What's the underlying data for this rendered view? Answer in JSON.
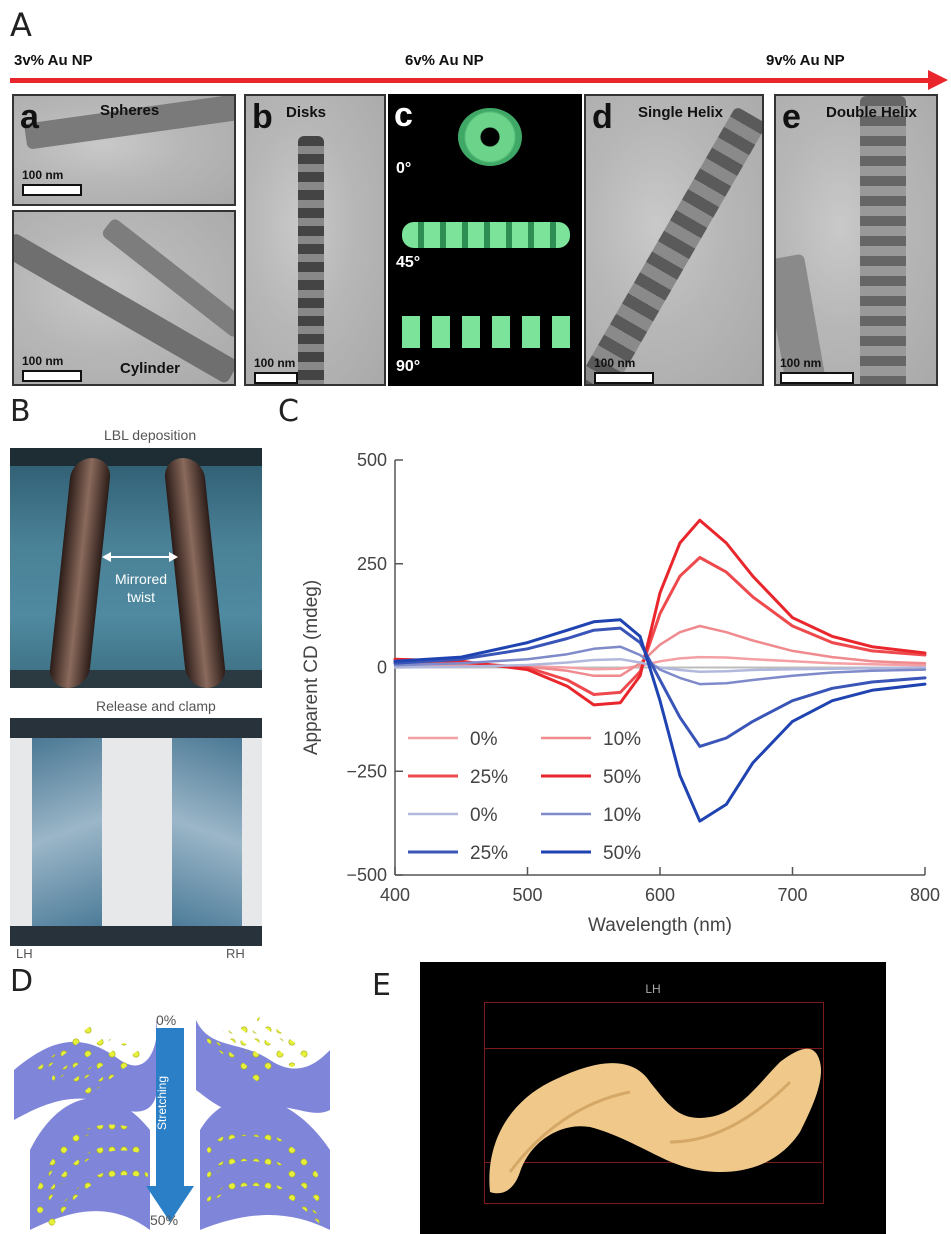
{
  "panelA": {
    "letter": "A",
    "arrow_labels": [
      "3v% Au NP",
      "6v% Au NP",
      "9v% Au NP"
    ],
    "subpanels": [
      {
        "letter": "a",
        "name": "Spheres",
        "scale": "100 nm"
      },
      {
        "letter": "",
        "name": "Cylinder",
        "scale": "100 nm"
      },
      {
        "letter": "b",
        "name": "Disks",
        "scale": "100 nm"
      },
      {
        "letter": "c",
        "name": "",
        "angles": [
          "0°",
          "45°",
          "90°"
        ]
      },
      {
        "letter": "d",
        "name": "Single Helix",
        "scale": "100 nm"
      },
      {
        "letter": "e",
        "name": "Double Helix",
        "scale": "100 nm"
      }
    ]
  },
  "panelB": {
    "letter": "B",
    "top_caption": "LBL deposition",
    "annotation": [
      "Mirrored",
      "twist"
    ],
    "bottom_caption": "Release and clamp",
    "left_label": "LH",
    "right_label": "RH"
  },
  "panelC": {
    "letter": "C"
  },
  "chart_data": {
    "type": "line",
    "xlabel": "Wavelength (nm)",
    "ylabel": "Apparent CD (mdeg)",
    "xlim": [
      400,
      800
    ],
    "ylim": [
      -500,
      500
    ],
    "xticks": [
      400,
      500,
      600,
      700,
      800
    ],
    "yticks": [
      500,
      250,
      0,
      -250,
      -500
    ],
    "ytick_labels": [
      "500",
      "250",
      "0",
      "−250",
      "−500"
    ],
    "legend_placement": "lower-left",
    "x": [
      400,
      450,
      500,
      530,
      550,
      570,
      585,
      600,
      615,
      630,
      650,
      670,
      700,
      730,
      760,
      800
    ],
    "series": [
      {
        "name": "0%",
        "group": "red",
        "color": "#f4a0a4",
        "width": 2.5,
        "values": [
          8,
          6,
          3,
          0,
          -4,
          -3,
          4,
          15,
          22,
          25,
          24,
          20,
          15,
          10,
          8,
          5
        ]
      },
      {
        "name": "10%",
        "group": "red",
        "color": "#ef8a8e",
        "width": 2.5,
        "values": [
          10,
          8,
          2,
          -8,
          -20,
          -20,
          10,
          55,
          85,
          100,
          85,
          65,
          40,
          25,
          15,
          10
        ]
      },
      {
        "name": "25%",
        "group": "red",
        "color": "#ee4a4e",
        "width": 3,
        "values": [
          15,
          12,
          0,
          -30,
          -65,
          -60,
          -10,
          130,
          220,
          265,
          230,
          170,
          100,
          60,
          40,
          30
        ]
      },
      {
        "name": "50%",
        "group": "red",
        "color": "#e8262b",
        "width": 3,
        "values": [
          20,
          15,
          -5,
          -45,
          -90,
          -85,
          -20,
          180,
          300,
          355,
          300,
          220,
          120,
          75,
          50,
          35
        ]
      },
      {
        "name": "0%",
        "group": "blue",
        "color": "#b1b8dc",
        "width": 2.5,
        "values": [
          0,
          2,
          6,
          12,
          18,
          20,
          12,
          0,
          -6,
          -10,
          -9,
          -6,
          -4,
          -3,
          -2,
          0
        ]
      },
      {
        "name": "10%",
        "group": "blue",
        "color": "#7e8ac9",
        "width": 2.5,
        "values": [
          5,
          10,
          20,
          32,
          45,
          50,
          30,
          -5,
          -25,
          -40,
          -38,
          -30,
          -20,
          -12,
          -8,
          -5
        ]
      },
      {
        "name": "25%",
        "group": "blue",
        "color": "#3a55b8",
        "width": 3,
        "values": [
          10,
          20,
          45,
          70,
          90,
          95,
          60,
          -30,
          -120,
          -190,
          -170,
          -130,
          -80,
          -50,
          -35,
          -25
        ]
      },
      {
        "name": "50%",
        "group": "blue",
        "color": "#1f43b0",
        "width": 3,
        "values": [
          15,
          25,
          60,
          90,
          110,
          115,
          75,
          -80,
          -260,
          -370,
          -330,
          -230,
          -130,
          -80,
          -55,
          -40
        ]
      }
    ]
  },
  "panelD": {
    "letter": "D",
    "top_label": "0%",
    "arrow_label": "Stretching",
    "bottom_label": "50%"
  },
  "panelE": {
    "letter": "E",
    "title": "LH"
  }
}
